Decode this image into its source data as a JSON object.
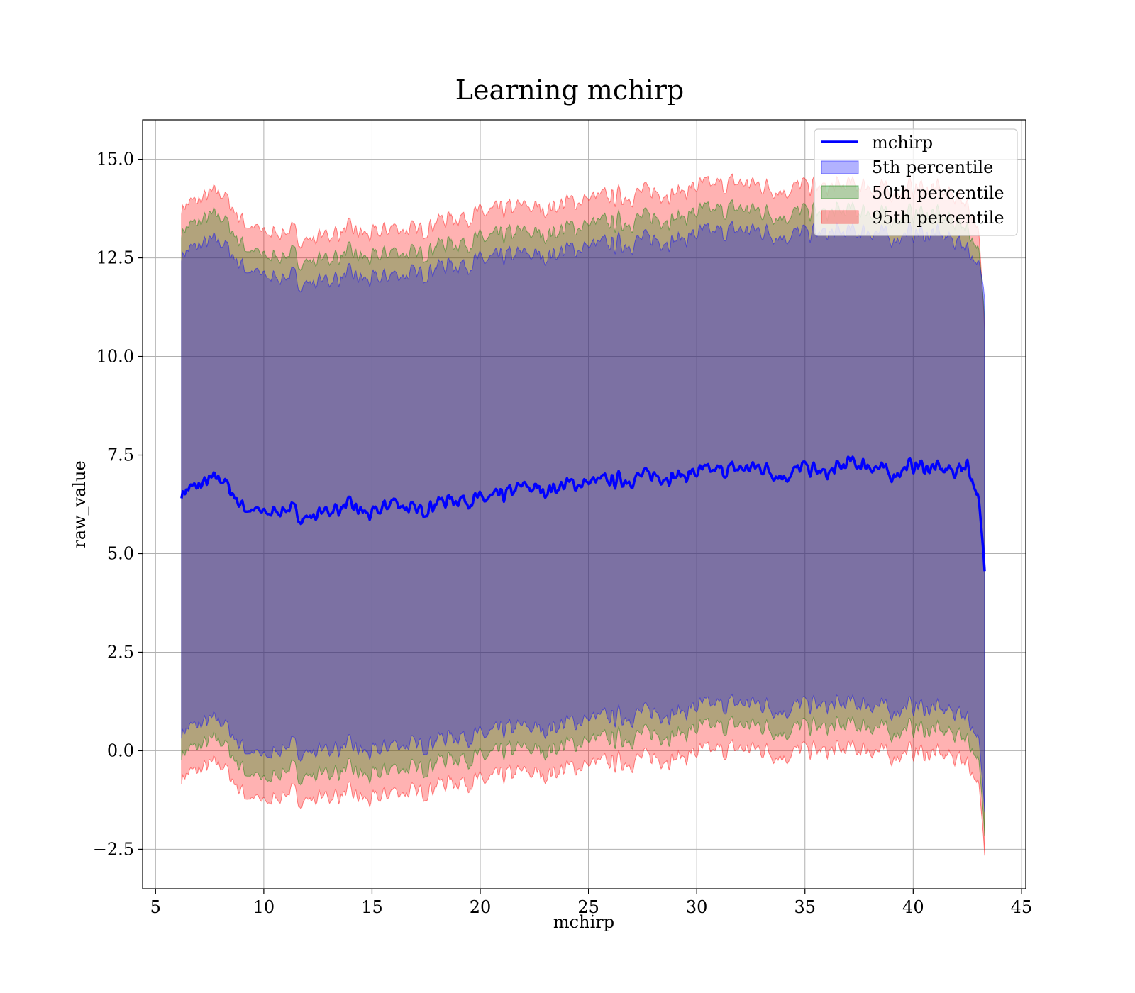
{
  "chart_data": {
    "type": "area",
    "title": "Learning mchirp",
    "xlabel": "mchirp",
    "ylabel": "raw_value",
    "xlim": [
      4.4,
      45.2
    ],
    "ylim": [
      -3.5,
      16.0
    ],
    "xticks": [
      5,
      10,
      15,
      20,
      25,
      30,
      35,
      40,
      45
    ],
    "xtick_labels": [
      "5",
      "10",
      "15",
      "20",
      "25",
      "30",
      "35",
      "40",
      "45"
    ],
    "yticks": [
      -2.5,
      0.0,
      2.5,
      5.0,
      7.5,
      10.0,
      12.5,
      15.0
    ],
    "ytick_labels": [
      "−2.5",
      "0.0",
      "2.5",
      "5.0",
      "7.5",
      "10.0",
      "12.5",
      "15.0"
    ],
    "grid": true,
    "legend_position": "top-right",
    "x": [
      6.2,
      7,
      8,
      9,
      10,
      11,
      12,
      13,
      14,
      15,
      16,
      17,
      18,
      19,
      20,
      21,
      22,
      23,
      24,
      25,
      26,
      27,
      28,
      29,
      30,
      31,
      32,
      33,
      34,
      35,
      36,
      37,
      38,
      39,
      40,
      41,
      42,
      42.5,
      43,
      43.3
    ],
    "series": [
      {
        "name": "mchirp",
        "kind": "line",
        "color": "#0000ff",
        "values": [
          6.55,
          6.72,
          6.95,
          6.2,
          6.0,
          6.15,
          5.9,
          6.1,
          6.2,
          5.95,
          6.35,
          6.05,
          6.3,
          6.4,
          6.35,
          6.45,
          6.7,
          6.6,
          6.75,
          6.8,
          6.85,
          6.9,
          7.0,
          6.95,
          7.05,
          7.1,
          7.15,
          7.2,
          6.95,
          7.2,
          7.0,
          7.3,
          7.25,
          7.0,
          7.25,
          7.15,
          7.1,
          7.3,
          6.4,
          4.6
        ]
      },
      {
        "name": "5th percentile",
        "kind": "band",
        "color": "#0000ff",
        "upper": [
          12.6,
          12.8,
          12.95,
          12.3,
          12.0,
          12.05,
          11.85,
          11.95,
          12.05,
          11.9,
          12.1,
          12.05,
          12.3,
          12.35,
          12.4,
          12.5,
          12.6,
          12.55,
          12.7,
          12.8,
          12.85,
          12.9,
          13.0,
          12.95,
          13.1,
          13.15,
          13.2,
          13.2,
          13.05,
          13.15,
          13.1,
          13.15,
          13.2,
          13.0,
          13.15,
          13.1,
          12.95,
          12.8,
          12.3,
          11.5
        ],
        "lower": [
          0.5,
          0.65,
          0.8,
          0.1,
          -0.2,
          0.15,
          -0.05,
          0.05,
          0.1,
          -0.1,
          0.2,
          0.1,
          0.3,
          0.4,
          0.35,
          0.5,
          0.6,
          0.55,
          0.7,
          0.8,
          0.85,
          0.9,
          1.0,
          0.95,
          1.1,
          1.15,
          1.2,
          1.2,
          1.0,
          1.2,
          1.1,
          1.2,
          1.2,
          1.0,
          1.15,
          1.05,
          1.0,
          0.9,
          0.3,
          -1.5
        ]
      },
      {
        "name": "50th percentile",
        "kind": "band",
        "color": "#008000",
        "upper": [
          13.2,
          13.4,
          13.6,
          12.85,
          12.5,
          12.6,
          12.4,
          12.5,
          12.6,
          12.45,
          12.7,
          12.55,
          12.85,
          12.9,
          12.95,
          13.05,
          13.15,
          13.1,
          13.25,
          13.35,
          13.4,
          13.45,
          13.55,
          13.5,
          13.65,
          13.7,
          13.75,
          13.7,
          13.55,
          13.7,
          13.6,
          13.7,
          13.7,
          13.5,
          13.65,
          13.6,
          13.45,
          13.3,
          12.7,
          11.0
        ],
        "lower": [
          -0.05,
          0.1,
          0.3,
          -0.45,
          -0.8,
          -0.45,
          -0.65,
          -0.55,
          -0.5,
          -0.7,
          -0.4,
          -0.5,
          -0.25,
          -0.15,
          -0.2,
          -0.05,
          0.05,
          0.0,
          0.15,
          0.25,
          0.3,
          0.35,
          0.45,
          0.4,
          0.55,
          0.6,
          0.65,
          0.65,
          0.45,
          0.65,
          0.55,
          0.65,
          0.65,
          0.45,
          0.6,
          0.5,
          0.45,
          0.35,
          -0.25,
          -2.1
        ]
      },
      {
        "name": "95th percentile",
        "kind": "band",
        "color": "#ff0000",
        "upper": [
          13.8,
          13.95,
          14.2,
          13.45,
          13.1,
          13.2,
          12.95,
          13.1,
          13.2,
          13.05,
          13.3,
          13.15,
          13.45,
          13.55,
          13.6,
          13.7,
          13.8,
          13.75,
          13.9,
          14.0,
          14.05,
          14.1,
          14.2,
          14.15,
          14.3,
          14.35,
          14.4,
          14.35,
          14.2,
          14.35,
          14.25,
          14.35,
          14.35,
          14.15,
          14.3,
          14.25,
          14.1,
          13.9,
          13.2,
          10.7
        ],
        "lower": [
          -0.65,
          -0.5,
          -0.3,
          -1.05,
          -1.35,
          -1.05,
          -1.25,
          -1.15,
          -1.1,
          -1.3,
          -1.0,
          -1.1,
          -0.85,
          -0.75,
          -0.8,
          -0.65,
          -0.55,
          -0.6,
          -0.45,
          -0.35,
          -0.3,
          -0.25,
          -0.15,
          -0.2,
          -0.05,
          0.0,
          0.05,
          0.05,
          -0.15,
          0.05,
          -0.05,
          0.05,
          0.05,
          -0.15,
          0.0,
          -0.1,
          -0.15,
          -0.25,
          -0.85,
          -2.6
        ]
      }
    ]
  }
}
